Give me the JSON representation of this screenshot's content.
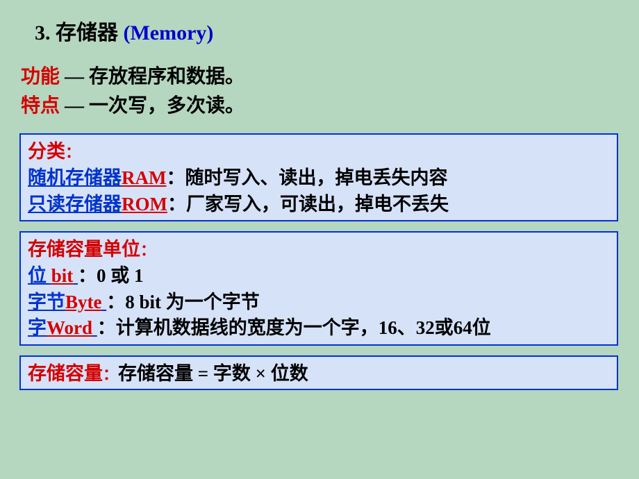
{
  "colors": {
    "background": "#b5d6bf",
    "panel_bg": "#d6e2f8",
    "panel_border": "#0033cc",
    "red": "#d40000",
    "link": "#0033cc",
    "black": "#000000"
  },
  "heading": {
    "prefix": "3. ",
    "chinese": "存储器",
    "space": " ",
    "en": "(Memory)"
  },
  "func": {
    "label": "功能",
    "dash": " — ",
    "text": " 存放程序和数据。"
  },
  "feat": {
    "label": "特点",
    "dash": " — ",
    "text": "一次写，多次读。"
  },
  "panel1": {
    "title": "分类",
    "colon": "：",
    "row1": {
      "ul_cn": "随机存储器",
      "ul_en": "RAM",
      "rest": "：随时写入、读出，掉电丢失内容"
    },
    "row2": {
      "ul_cn": "只读存储器",
      "ul_en": "ROM",
      "rest": "：厂家写入，可读出，掉电不丢失"
    }
  },
  "panel2": {
    "title": "存储容量单位",
    "colon": "：",
    "row1": {
      "ul_cn": "位",
      "ul_space": " ",
      "ul_en": "bit",
      "ul_after": " ",
      "rest": "：0 或 1"
    },
    "row2": {
      "ul_cn": "字节",
      "ul_en": "Byte",
      "ul_after": " ",
      "rest": "：8 bit 为一个字节"
    },
    "row3": {
      "ul_cn": "字",
      "ul_en": "Word",
      "ul_after": " ",
      "rest": "：计算机数据线的宽度为一个字，16、32或64位"
    }
  },
  "panel3": {
    "title": "存储容量",
    "colon": "：",
    "text": "存储容量 = 字数 × 位数"
  }
}
